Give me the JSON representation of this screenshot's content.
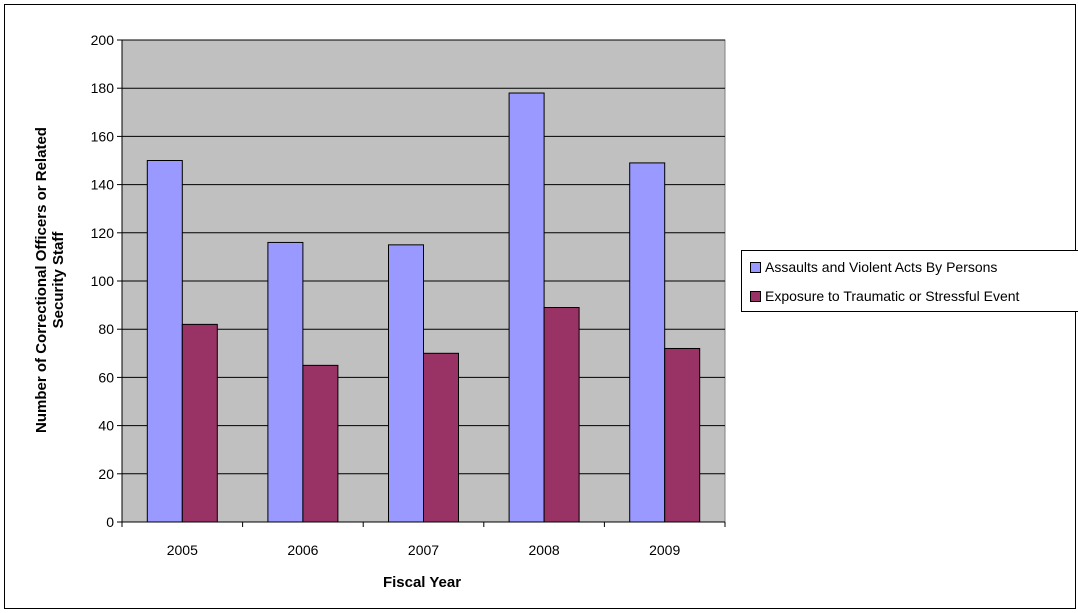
{
  "chart_data": {
    "type": "bar",
    "title": "",
    "xlabel": "Fiscal Year",
    "ylabel_line1": "Number of Correctional Officers or Related",
    "ylabel_line2": "Security Staff",
    "categories": [
      "2005",
      "2006",
      "2007",
      "2008",
      "2009"
    ],
    "ylim": [
      0,
      200
    ],
    "yticks": [
      0,
      20,
      40,
      60,
      80,
      100,
      120,
      140,
      160,
      180,
      200
    ],
    "grid": true,
    "legend_position": "right",
    "series": [
      {
        "name": "Assaults and Violent Acts By Persons",
        "color": "#9999ff",
        "values": [
          150,
          116,
          115,
          178,
          149
        ]
      },
      {
        "name": "Exposure to Traumatic or Stressful Event",
        "color": "#993366",
        "values": [
          82,
          65,
          70,
          89,
          72
        ]
      }
    ],
    "plot_background": "#c0c0c0"
  }
}
